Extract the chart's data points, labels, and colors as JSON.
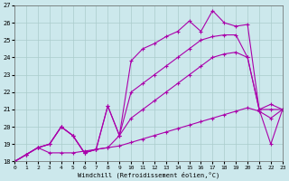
{
  "xlabel": "Windchill (Refroidissement éolien,°C)",
  "xlim": [
    0,
    23
  ],
  "ylim": [
    18,
    27
  ],
  "xticks": [
    0,
    1,
    2,
    3,
    4,
    5,
    6,
    7,
    8,
    9,
    10,
    11,
    12,
    13,
    14,
    15,
    16,
    17,
    18,
    19,
    20,
    21,
    22,
    23
  ],
  "yticks": [
    18,
    19,
    20,
    21,
    22,
    23,
    24,
    25,
    26,
    27
  ],
  "background_color": "#cce8ec",
  "line_color": "#aa00aa",
  "grid_color": "#aacccc",
  "series": [
    {
      "x": [
        0,
        1,
        2,
        3,
        4,
        5,
        6,
        7,
        8,
        9,
        10,
        11,
        12,
        13,
        14,
        15,
        16,
        17,
        18,
        19,
        20,
        21,
        22,
        23
      ],
      "y": [
        18,
        18.4,
        18.8,
        18.5,
        18.5,
        18.5,
        18.6,
        18.7,
        18.8,
        18.9,
        19.1,
        19.3,
        19.5,
        19.7,
        19.9,
        20.1,
        20.3,
        20.5,
        20.7,
        20.9,
        21.1,
        20.9,
        20.5,
        21.0
      ]
    },
    {
      "x": [
        0,
        1,
        2,
        3,
        4,
        5,
        6,
        7,
        8,
        9,
        10,
        11,
        12,
        13,
        14,
        15,
        16,
        17,
        18,
        19,
        20,
        21,
        22,
        23
      ],
      "y": [
        18,
        18.4,
        18.8,
        19.0,
        20.0,
        19.5,
        18.5,
        18.7,
        18.8,
        19.5,
        20.5,
        21.0,
        21.5,
        22.0,
        22.5,
        23.0,
        23.5,
        24.0,
        24.2,
        24.3,
        24.0,
        21.0,
        19.0,
        21.0
      ]
    },
    {
      "x": [
        0,
        1,
        2,
        3,
        4,
        5,
        6,
        7,
        8,
        9,
        10,
        11,
        12,
        13,
        14,
        15,
        16,
        17,
        18,
        19,
        20,
        21,
        22,
        23
      ],
      "y": [
        18,
        18.4,
        18.8,
        19.0,
        20.0,
        19.5,
        18.5,
        18.7,
        21.2,
        19.5,
        22.0,
        22.5,
        23.0,
        23.5,
        24.0,
        24.5,
        25.0,
        25.2,
        25.3,
        25.3,
        24.0,
        21.0,
        21.3,
        21.0
      ]
    },
    {
      "x": [
        0,
        1,
        2,
        3,
        4,
        5,
        6,
        7,
        8,
        9,
        10,
        11,
        12,
        13,
        14,
        15,
        16,
        17,
        18,
        19,
        20,
        21,
        22,
        23
      ],
      "y": [
        18,
        18.4,
        18.8,
        19.0,
        20.0,
        19.5,
        18.5,
        18.7,
        21.2,
        19.5,
        23.8,
        24.5,
        24.8,
        25.2,
        25.5,
        26.1,
        25.5,
        26.7,
        26.0,
        25.8,
        25.9,
        21.0,
        21.0,
        21.0
      ]
    }
  ]
}
